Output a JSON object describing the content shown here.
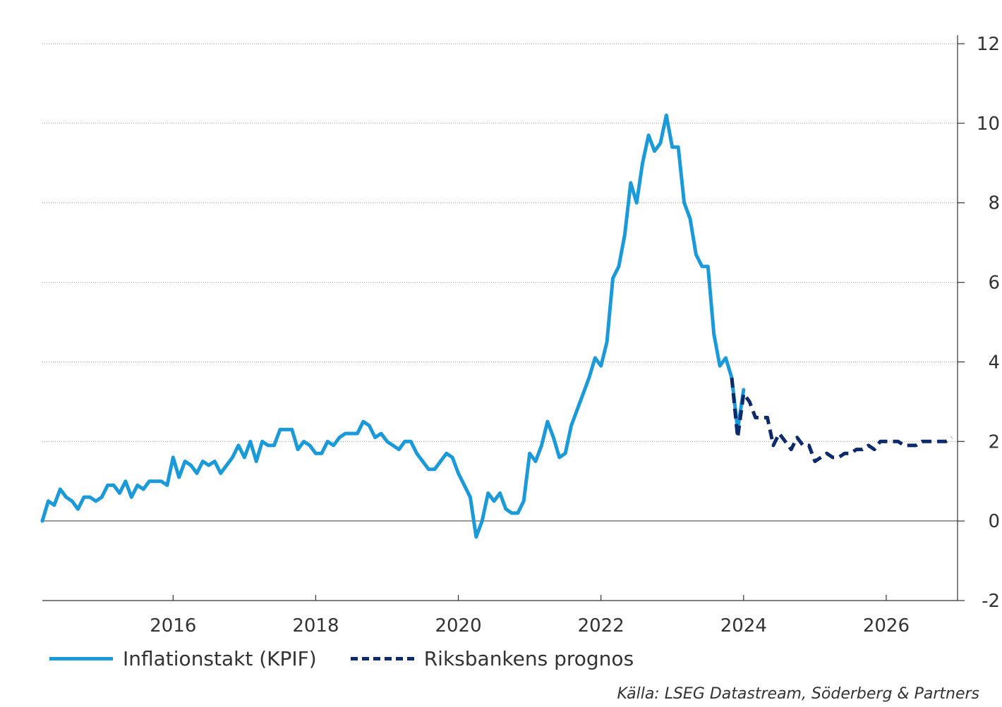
{
  "chart_data": {
    "type": "line",
    "x_axis": {
      "type": "date",
      "min": "2014-03",
      "max": "2027-01",
      "tick_labels": [
        "2016",
        "2018",
        "2020",
        "2022",
        "2024",
        "2026"
      ]
    },
    "y_axis": {
      "position": "right",
      "min": -2,
      "max": 12,
      "tick_labels": [
        "12",
        "10",
        "8",
        "6",
        "4",
        "2",
        "0",
        "-2"
      ]
    },
    "grid": "horizontal dotted",
    "legend_position": "bottom-left",
    "series": [
      {
        "name": "Inflationstakt (KPIF)",
        "color": "#1a9ad8",
        "style": "solid",
        "x": [
          "2014-03",
          "2014-04",
          "2014-05",
          "2014-06",
          "2014-07",
          "2014-08",
          "2014-09",
          "2014-10",
          "2014-11",
          "2014-12",
          "2015-01",
          "2015-02",
          "2015-03",
          "2015-04",
          "2015-05",
          "2015-06",
          "2015-07",
          "2015-08",
          "2015-09",
          "2015-10",
          "2015-11",
          "2015-12",
          "2016-01",
          "2016-02",
          "2016-03",
          "2016-04",
          "2016-05",
          "2016-06",
          "2016-07",
          "2016-08",
          "2016-09",
          "2016-10",
          "2016-11",
          "2016-12",
          "2017-01",
          "2017-02",
          "2017-03",
          "2017-04",
          "2017-05",
          "2017-06",
          "2017-07",
          "2017-08",
          "2017-09",
          "2017-10",
          "2017-11",
          "2017-12",
          "2018-01",
          "2018-02",
          "2018-03",
          "2018-04",
          "2018-05",
          "2018-06",
          "2018-07",
          "2018-08",
          "2018-09",
          "2018-10",
          "2018-11",
          "2018-12",
          "2019-01",
          "2019-02",
          "2019-03",
          "2019-04",
          "2019-05",
          "2019-06",
          "2019-07",
          "2019-08",
          "2019-09",
          "2019-10",
          "2019-11",
          "2019-12",
          "2020-01",
          "2020-02",
          "2020-03",
          "2020-04",
          "2020-05",
          "2020-06",
          "2020-07",
          "2020-08",
          "2020-09",
          "2020-10",
          "2020-11",
          "2020-12",
          "2021-01",
          "2021-02",
          "2021-03",
          "2021-04",
          "2021-05",
          "2021-06",
          "2021-07",
          "2021-08",
          "2021-09",
          "2021-10",
          "2021-11",
          "2021-12",
          "2022-01",
          "2022-02",
          "2022-03",
          "2022-04",
          "2022-05",
          "2022-06",
          "2022-07",
          "2022-08",
          "2022-09",
          "2022-10",
          "2022-11",
          "2022-12",
          "2023-01",
          "2023-02",
          "2023-03",
          "2023-04",
          "2023-05",
          "2023-06",
          "2023-07",
          "2023-08",
          "2023-09",
          "2023-10",
          "2023-11",
          "2023-12",
          "2024-01"
        ],
        "values": [
          0.0,
          0.5,
          0.4,
          0.8,
          0.6,
          0.5,
          0.3,
          0.6,
          0.6,
          0.5,
          0.6,
          0.9,
          0.9,
          0.7,
          1.0,
          0.6,
          0.9,
          0.8,
          1.0,
          1.0,
          1.0,
          0.9,
          1.6,
          1.1,
          1.5,
          1.4,
          1.2,
          1.5,
          1.4,
          1.5,
          1.2,
          1.4,
          1.6,
          1.9,
          1.6,
          2.0,
          1.5,
          2.0,
          1.9,
          1.9,
          2.3,
          2.3,
          2.3,
          1.8,
          2.0,
          1.9,
          1.7,
          1.7,
          2.0,
          1.9,
          2.1,
          2.2,
          2.2,
          2.2,
          2.5,
          2.4,
          2.1,
          2.2,
          2.0,
          1.9,
          1.8,
          2.0,
          2.0,
          1.7,
          1.5,
          1.3,
          1.3,
          1.5,
          1.7,
          1.6,
          1.2,
          0.9,
          0.6,
          -0.4,
          0.0,
          0.7,
          0.5,
          0.7,
          0.3,
          0.2,
          0.2,
          0.5,
          1.7,
          1.5,
          1.9,
          2.5,
          2.1,
          1.6,
          1.7,
          2.4,
          2.8,
          3.2,
          3.6,
          4.1,
          3.9,
          4.5,
          6.1,
          6.4,
          7.2,
          8.5,
          8.0,
          9.0,
          9.7,
          9.3,
          9.5,
          10.2,
          9.4,
          9.4,
          8.0,
          7.6,
          6.7,
          6.4,
          6.4,
          4.7,
          3.9,
          4.1,
          3.6,
          2.3,
          3.3
        ]
      },
      {
        "name": "Riksbankens prognos",
        "color": "#0d2a6b",
        "style": "dashed",
        "x": [
          "2023-11",
          "2023-12",
          "2024-01",
          "2024-02",
          "2024-03",
          "2024-04",
          "2024-05",
          "2024-06",
          "2024-07",
          "2024-08",
          "2024-09",
          "2024-10",
          "2024-11",
          "2024-12",
          "2025-01",
          "2025-02",
          "2025-03",
          "2025-04",
          "2025-05",
          "2025-06",
          "2025-07",
          "2025-08",
          "2025-09",
          "2025-10",
          "2025-11",
          "2025-12",
          "2026-01",
          "2026-02",
          "2026-03",
          "2026-04",
          "2026-05",
          "2026-06",
          "2026-07",
          "2026-08",
          "2026-09",
          "2026-10",
          "2026-11",
          "2026-12"
        ],
        "values": [
          3.6,
          2.1,
          3.2,
          3.0,
          2.6,
          2.6,
          2.6,
          1.9,
          2.2,
          2.0,
          1.8,
          2.1,
          1.9,
          1.9,
          1.5,
          1.6,
          1.7,
          1.6,
          1.6,
          1.7,
          1.7,
          1.8,
          1.8,
          1.9,
          1.8,
          2.0,
          2.0,
          2.0,
          2.0,
          1.9,
          1.9,
          1.9,
          2.0,
          2.0,
          2.0,
          2.0,
          2.0,
          2.1
        ]
      }
    ],
    "source": "Källa: LSEG Datastream, Söderberg & Partners"
  }
}
